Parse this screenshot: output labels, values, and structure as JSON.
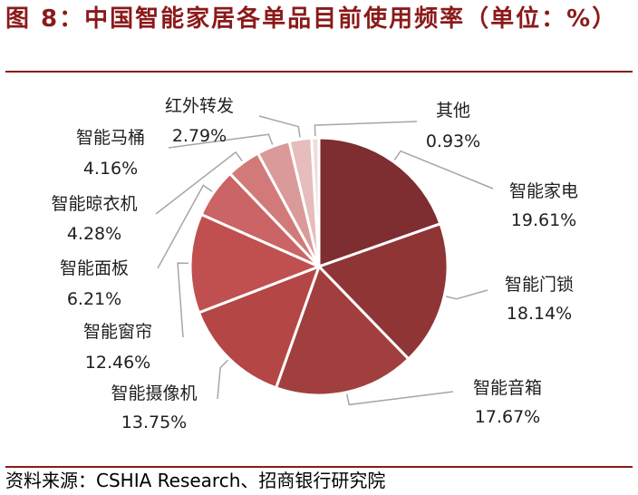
{
  "title": "图 8：中国智能家居各单品目前使用频率（单位：%）",
  "source": "资料来源：CSHIA Research、招商银行研究院",
  "chart_data": {
    "type": "pie",
    "title": "图 8：中国智能家居各单品目前使用频率（单位：%）",
    "unit": "%",
    "categories": [
      "智能家电",
      "智能门锁",
      "智能音箱",
      "智能摄像机",
      "智能窗帘",
      "智能面板",
      "智能晾衣机",
      "智能马桶",
      "红外转发",
      "其他"
    ],
    "values": [
      19.61,
      18.14,
      17.67,
      13.75,
      12.46,
      6.21,
      4.28,
      4.16,
      2.79,
      0.93
    ],
    "value_labels": [
      "19.61%",
      "18.14%",
      "17.67%",
      "13.75%",
      "12.46%",
      "6.21%",
      "4.28%",
      "4.16%",
      "2.79%",
      "0.93%"
    ],
    "colors": [
      "#7e2d30",
      "#8f3535",
      "#a13f3f",
      "#b44646",
      "#c05050",
      "#cb6464",
      "#d27a7a",
      "#db9a9a",
      "#e6bcbc",
      "#f0dcdc"
    ],
    "start": "12 o'clock",
    "direction": "clockwise",
    "legend": "none"
  }
}
